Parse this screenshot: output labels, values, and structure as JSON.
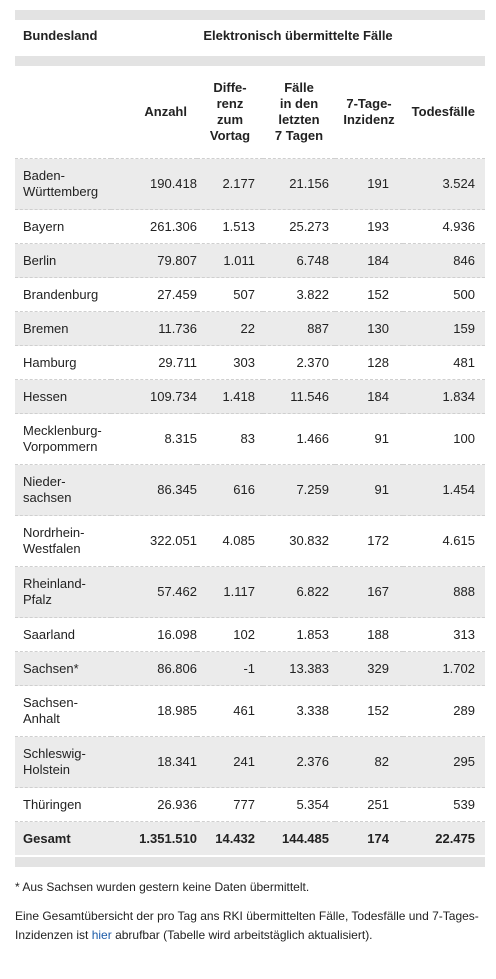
{
  "table": {
    "header_state": "Bundesland",
    "header_group": "Elektronisch übermittelte Fälle",
    "columns": [
      {
        "lines": [
          "Anzahl"
        ]
      },
      {
        "lines": [
          "Diffe-",
          "renz",
          "zum",
          "Vortag"
        ]
      },
      {
        "lines": [
          "Fälle",
          "in den",
          "letzten",
          "7 Tagen"
        ]
      },
      {
        "lines": [
          "7-Tage-",
          "Inzidenz"
        ]
      },
      {
        "lines": [
          "Todesfälle"
        ]
      }
    ],
    "rows": [
      {
        "state": [
          "Baden-",
          "Württemberg"
        ],
        "anzahl": "190.418",
        "differenz": "2.177",
        "faelle7": "21.156",
        "inzidenz": "191",
        "todesfaelle": "3.524"
      },
      {
        "state": [
          "Bayern"
        ],
        "anzahl": "261.306",
        "differenz": "1.513",
        "faelle7": "25.273",
        "inzidenz": "193",
        "todesfaelle": "4.936"
      },
      {
        "state": [
          "Berlin"
        ],
        "anzahl": "79.807",
        "differenz": "1.011",
        "faelle7": "6.748",
        "inzidenz": "184",
        "todesfaelle": "846"
      },
      {
        "state": [
          "Brandenburg"
        ],
        "anzahl": "27.459",
        "differenz": "507",
        "faelle7": "3.822",
        "inzidenz": "152",
        "todesfaelle": "500"
      },
      {
        "state": [
          "Bremen"
        ],
        "anzahl": "11.736",
        "differenz": "22",
        "faelle7": "887",
        "inzidenz": "130",
        "todesfaelle": "159"
      },
      {
        "state": [
          "Hamburg"
        ],
        "anzahl": "29.711",
        "differenz": "303",
        "faelle7": "2.370",
        "inzidenz": "128",
        "todesfaelle": "481"
      },
      {
        "state": [
          "Hessen"
        ],
        "anzahl": "109.734",
        "differenz": "1.418",
        "faelle7": "11.546",
        "inzidenz": "184",
        "todesfaelle": "1.834"
      },
      {
        "state": [
          "Mecklenburg-",
          "Vorpommern"
        ],
        "anzahl": "8.315",
        "differenz": "83",
        "faelle7": "1.466",
        "inzidenz": "91",
        "todesfaelle": "100"
      },
      {
        "state": [
          "Nieder-",
          "sachsen"
        ],
        "anzahl": "86.345",
        "differenz": "616",
        "faelle7": "7.259",
        "inzidenz": "91",
        "todesfaelle": "1.454"
      },
      {
        "state": [
          "Nordrhein-",
          "Westfalen"
        ],
        "anzahl": "322.051",
        "differenz": "4.085",
        "faelle7": "30.832",
        "inzidenz": "172",
        "todesfaelle": "4.615"
      },
      {
        "state": [
          "Rheinland-",
          "Pfalz"
        ],
        "anzahl": "57.462",
        "differenz": "1.117",
        "faelle7": "6.822",
        "inzidenz": "167",
        "todesfaelle": "888"
      },
      {
        "state": [
          "Saarland"
        ],
        "anzahl": "16.098",
        "differenz": "102",
        "faelle7": "1.853",
        "inzidenz": "188",
        "todesfaelle": "313"
      },
      {
        "state": [
          "Sachsen*"
        ],
        "anzahl": "86.806",
        "differenz": "-1",
        "faelle7": "13.383",
        "inzidenz": "329",
        "todesfaelle": "1.702"
      },
      {
        "state": [
          "Sachsen-",
          "Anhalt"
        ],
        "anzahl": "18.985",
        "differenz": "461",
        "faelle7": "3.338",
        "inzidenz": "152",
        "todesfaelle": "289"
      },
      {
        "state": [
          "Schleswig-",
          "Holstein"
        ],
        "anzahl": "18.341",
        "differenz": "241",
        "faelle7": "2.376",
        "inzidenz": "82",
        "todesfaelle": "295"
      },
      {
        "state": [
          "Thüringen"
        ],
        "anzahl": "26.936",
        "differenz": "777",
        "faelle7": "5.354",
        "inzidenz": "251",
        "todesfaelle": "539"
      }
    ],
    "total": {
      "state": "Gesamt",
      "anzahl": "1.351.510",
      "differenz": "14.432",
      "faelle7": "144.485",
      "inzidenz": "174",
      "todesfaelle": "22.475"
    }
  },
  "footnotes": {
    "sachsen_note": "* Aus Sachsen wurden gestern keine Daten übermittelt.",
    "summary_before": "Eine Gesamtübersicht der pro Tag ans RKI übermittelten Fälle, Todesfälle und 7-Tages-Inzidenzen ist ",
    "summary_link": "hier",
    "summary_after": " abrufbar (Tabelle wird arbeitstäglich aktualisiert)."
  },
  "colors": {
    "row_stripe": "#ebebeb",
    "bar": "#e3e3e3",
    "link": "#1a5aa8"
  }
}
